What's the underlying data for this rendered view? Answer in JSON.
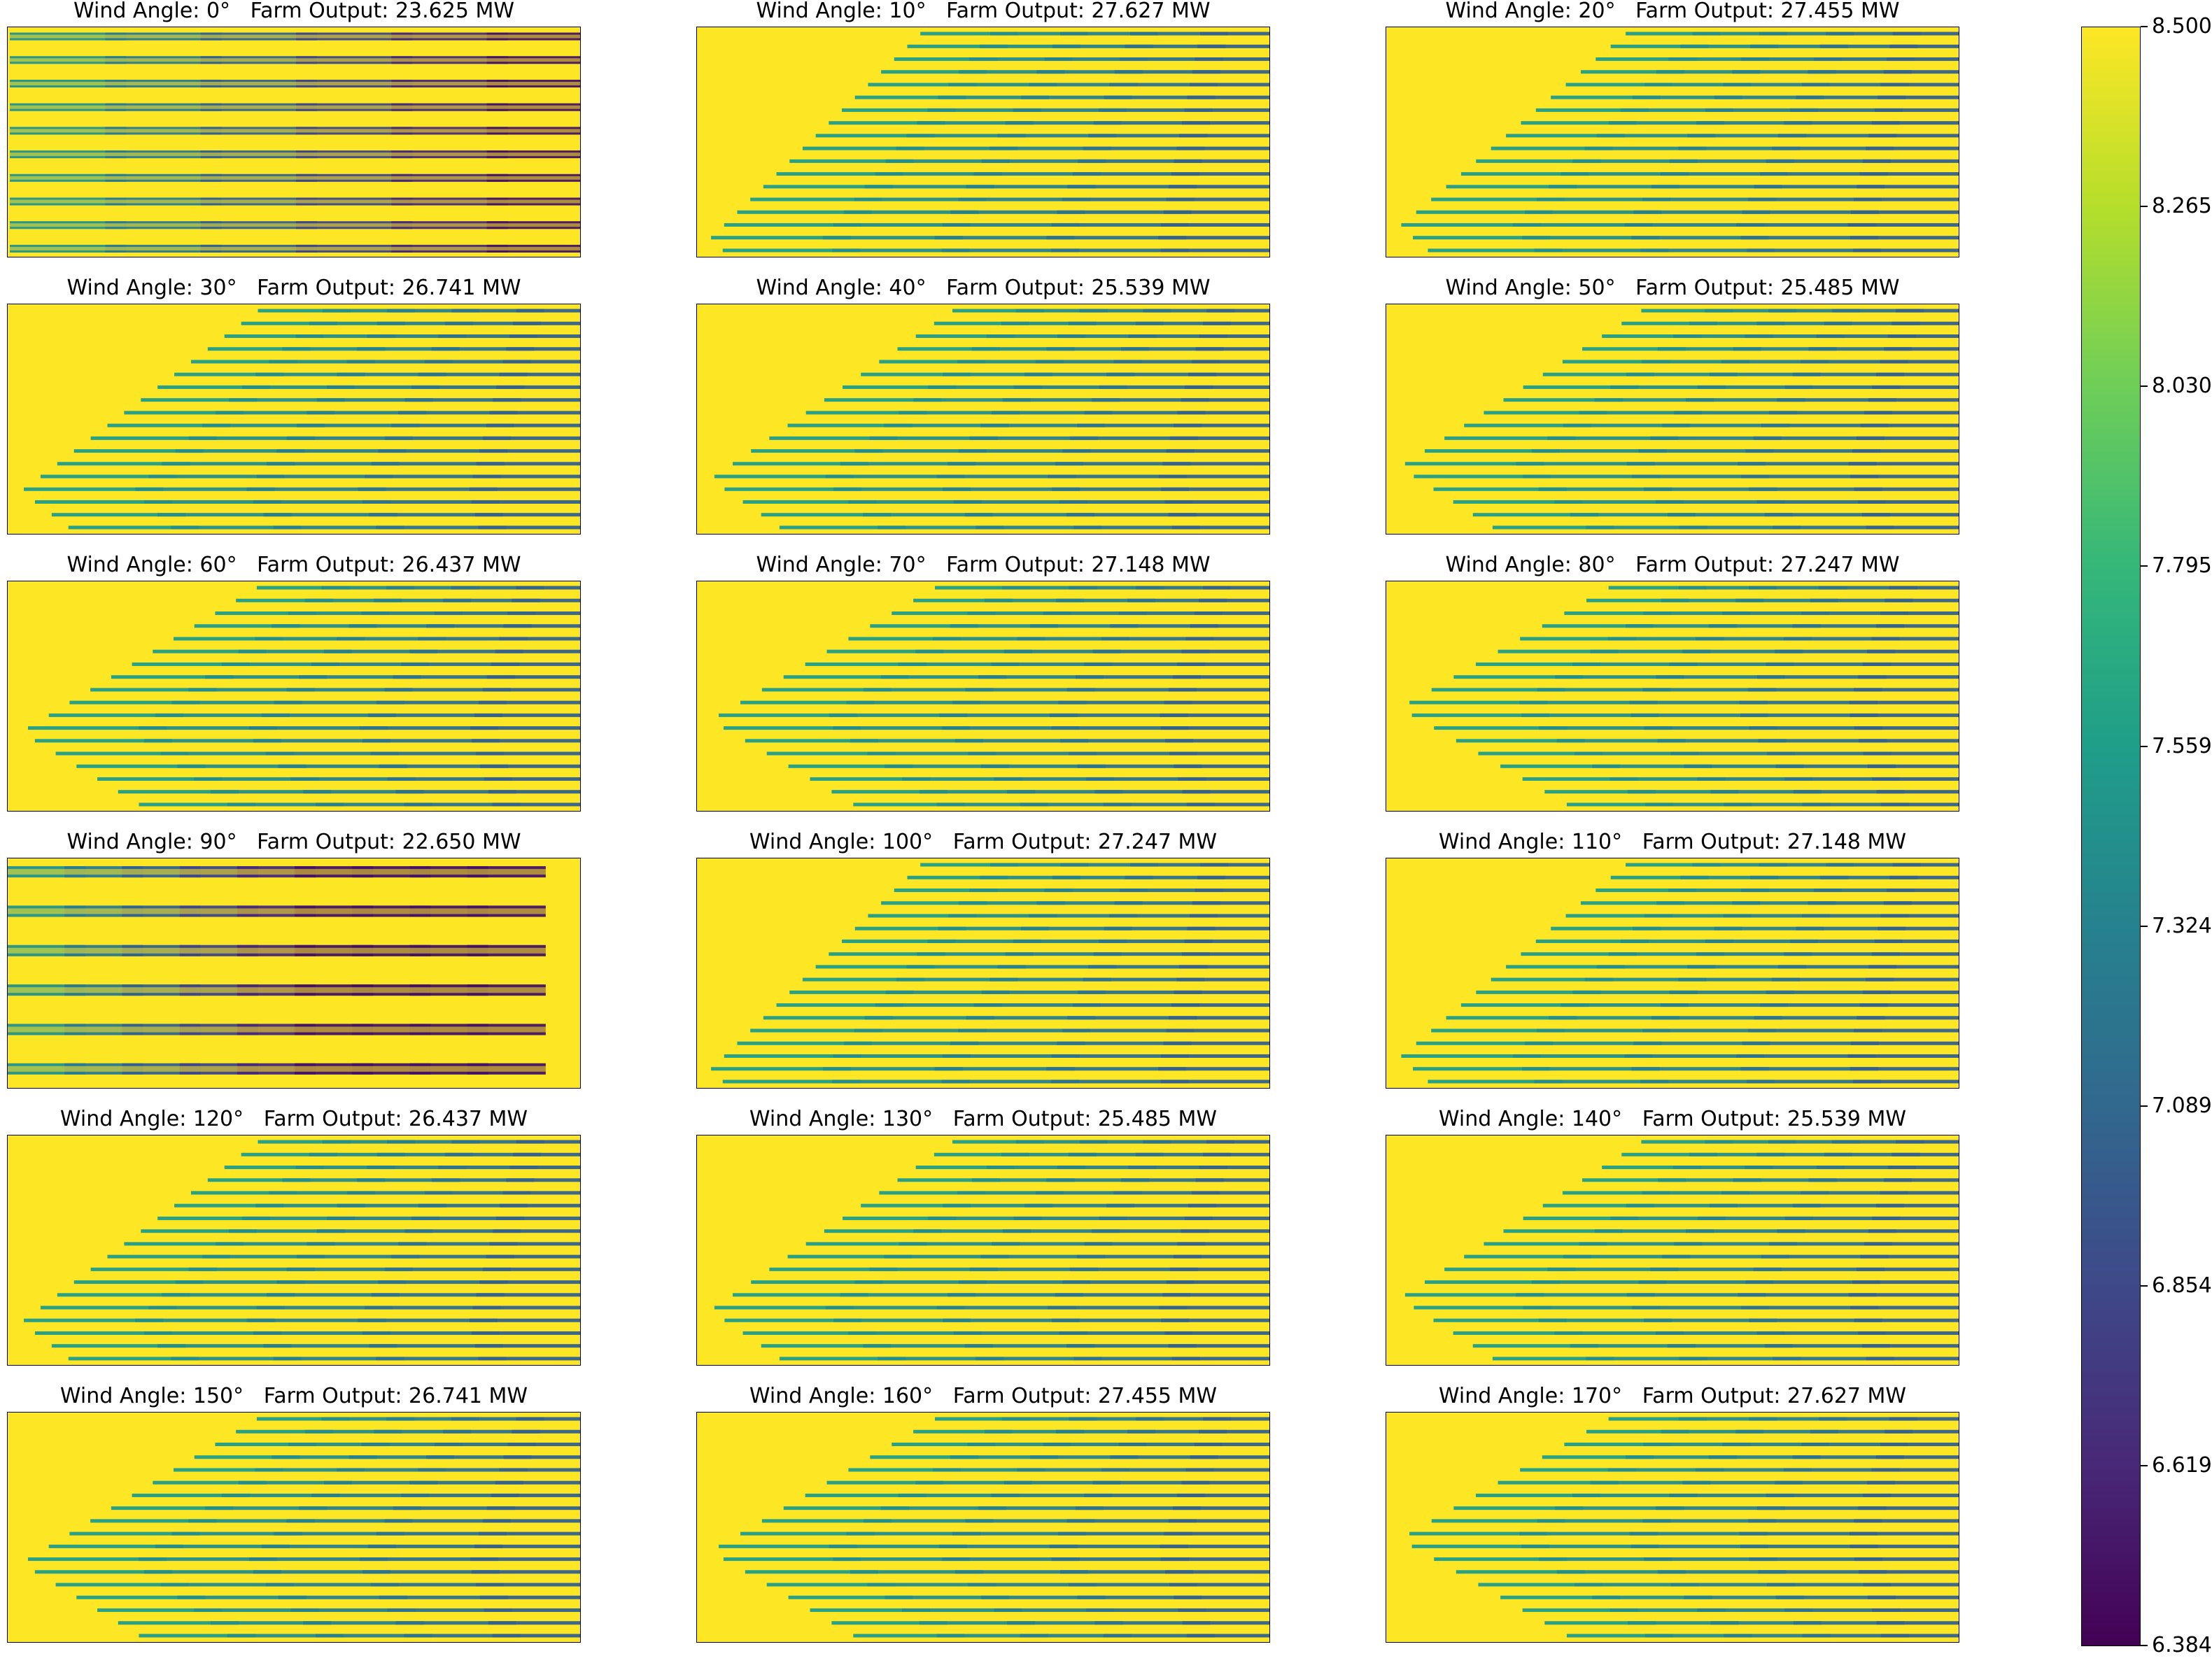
{
  "chart_data": {
    "type": "heatmap",
    "layout": "6x3 grid of wind-farm wake maps",
    "colormap": "viridis",
    "panels": [
      {
        "title": "Wind Angle: 0°   Farm Output: 23.625 MW",
        "angle": 0,
        "output_mw": 23.625
      },
      {
        "title": "Wind Angle: 10°   Farm Output: 27.627 MW",
        "angle": 10,
        "output_mw": 27.627
      },
      {
        "title": "Wind Angle: 20°   Farm Output: 27.455 MW",
        "angle": 20,
        "output_mw": 27.455
      },
      {
        "title": "Wind Angle: 30°   Farm Output: 26.741 MW",
        "angle": 30,
        "output_mw": 26.741
      },
      {
        "title": "Wind Angle: 40°   Farm Output: 25.539 MW",
        "angle": 40,
        "output_mw": 25.539
      },
      {
        "title": "Wind Angle: 50°   Farm Output: 25.485 MW",
        "angle": 50,
        "output_mw": 25.485
      },
      {
        "title": "Wind Angle: 60°   Farm Output: 26.437 MW",
        "angle": 60,
        "output_mw": 26.437
      },
      {
        "title": "Wind Angle: 70°   Farm Output: 27.148 MW",
        "angle": 70,
        "output_mw": 27.148
      },
      {
        "title": "Wind Angle: 80°   Farm Output: 27.247 MW",
        "angle": 80,
        "output_mw": 27.247
      },
      {
        "title": "Wind Angle: 90°   Farm Output: 22.650 MW",
        "angle": 90,
        "output_mw": 22.65
      },
      {
        "title": "Wind Angle: 100°   Farm Output: 27.247 MW",
        "angle": 100,
        "output_mw": 27.247
      },
      {
        "title": "Wind Angle: 110°   Farm Output: 27.148 MW",
        "angle": 110,
        "output_mw": 27.148
      },
      {
        "title": "Wind Angle: 120°   Farm Output: 26.437 MW",
        "angle": 120,
        "output_mw": 26.437
      },
      {
        "title": "Wind Angle: 130°   Farm Output: 25.485 MW",
        "angle": 130,
        "output_mw": 25.485
      },
      {
        "title": "Wind Angle: 140°   Farm Output: 25.539 MW",
        "angle": 140,
        "output_mw": 25.539
      },
      {
        "title": "Wind Angle: 150°   Farm Output: 26.741 MW",
        "angle": 150,
        "output_mw": 26.741
      },
      {
        "title": "Wind Angle: 160°   Farm Output: 27.455 MW",
        "angle": 160,
        "output_mw": 27.455
      },
      {
        "title": "Wind Angle: 170°   Farm Output: 27.627 MW",
        "angle": 170,
        "output_mw": 27.627
      }
    ],
    "colorbar": {
      "min": 6.384,
      "max": 8.5,
      "ticks": [
        "6.384",
        "6.619",
        "6.854",
        "7.089",
        "7.324",
        "7.559",
        "7.795",
        "8.030",
        "8.265",
        "8.500"
      ]
    },
    "colors": {
      "background": "#fde725",
      "viridis_stops": [
        "#440154",
        "#482878",
        "#3e4989",
        "#31688e",
        "#26828e",
        "#1f9e89",
        "#35b779",
        "#6ece58",
        "#b5de2b",
        "#fde725"
      ]
    }
  }
}
